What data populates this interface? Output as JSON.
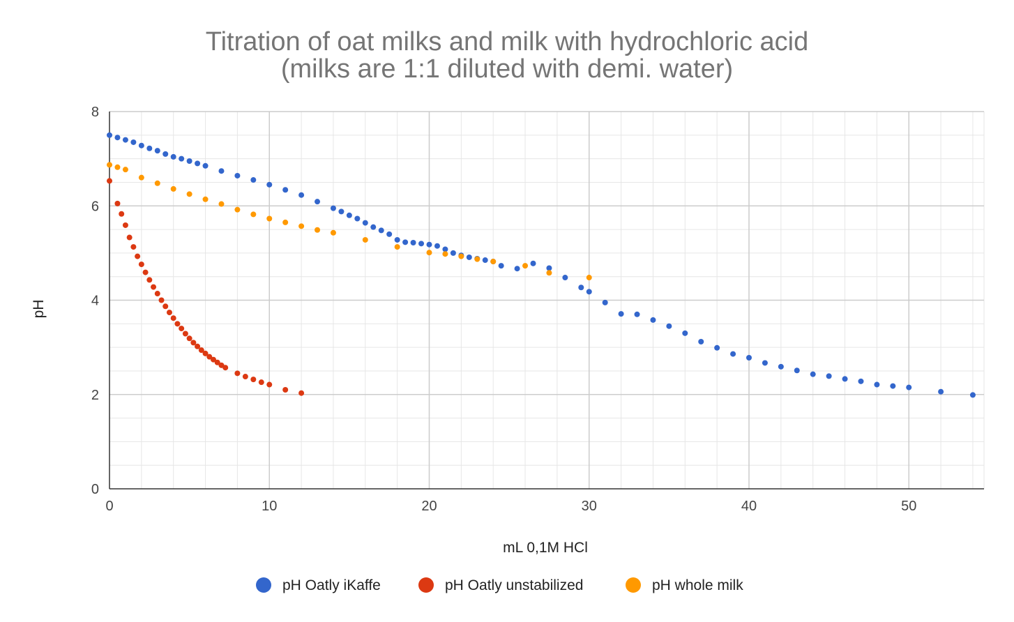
{
  "chart_data": {
    "type": "scatter",
    "title": "Titration of oat milks and milk with hydrochloric acid",
    "subtitle": "(milks are 1:1 diluted with demi. water)",
    "xlabel": "mL 0,1M HCl",
    "ylabel": "pH",
    "xlim": [
      0,
      54.7
    ],
    "ylim": [
      0,
      8
    ],
    "x_ticks": [
      "0",
      "10",
      "20",
      "30",
      "40",
      "50"
    ],
    "y_ticks": [
      "0",
      "2",
      "4",
      "6",
      "8"
    ],
    "grid": true,
    "legend_position": "bottom",
    "series": [
      {
        "name": "pH Oatly iKaffe",
        "color": "#3366cc",
        "points": [
          [
            0,
            7.5
          ],
          [
            0.5,
            7.45
          ],
          [
            1,
            7.4
          ],
          [
            1.5,
            7.35
          ],
          [
            2,
            7.28
          ],
          [
            2.5,
            7.22
          ],
          [
            3,
            7.17
          ],
          [
            3.5,
            7.1
          ],
          [
            4,
            7.04
          ],
          [
            4.5,
            7.0
          ],
          [
            5,
            6.95
          ],
          [
            5.5,
            6.9
          ],
          [
            6,
            6.85
          ],
          [
            7,
            6.74
          ],
          [
            8,
            6.64
          ],
          [
            9,
            6.55
          ],
          [
            10,
            6.45
          ],
          [
            11,
            6.34
          ],
          [
            12,
            6.23
          ],
          [
            13,
            6.09
          ],
          [
            14,
            5.95
          ],
          [
            14.5,
            5.88
          ],
          [
            15,
            5.8
          ],
          [
            15.5,
            5.73
          ],
          [
            16,
            5.64
          ],
          [
            16.5,
            5.55
          ],
          [
            17,
            5.48
          ],
          [
            17.5,
            5.4
          ],
          [
            18,
            5.28
          ],
          [
            18.5,
            5.23
          ],
          [
            19,
            5.22
          ],
          [
            19.5,
            5.2
          ],
          [
            20,
            5.18
          ],
          [
            20.5,
            5.15
          ],
          [
            21,
            5.08
          ],
          [
            21.5,
            5.0
          ],
          [
            22,
            4.95
          ],
          [
            22.5,
            4.91
          ],
          [
            23,
            4.88
          ],
          [
            23.5,
            4.85
          ],
          [
            24,
            4.82
          ],
          [
            24.5,
            4.73
          ],
          [
            25.5,
            4.67
          ],
          [
            26.5,
            4.78
          ],
          [
            27.5,
            4.68
          ],
          [
            28.5,
            4.48
          ],
          [
            29.5,
            4.27
          ],
          [
            30,
            4.18
          ],
          [
            31,
            3.95
          ],
          [
            32,
            3.71
          ],
          [
            33,
            3.7
          ],
          [
            34,
            3.58
          ],
          [
            35,
            3.45
          ],
          [
            36,
            3.3
          ],
          [
            37,
            3.12
          ],
          [
            38,
            2.99
          ],
          [
            39,
            2.86
          ],
          [
            40,
            2.78
          ],
          [
            41,
            2.67
          ],
          [
            42,
            2.59
          ],
          [
            43,
            2.51
          ],
          [
            44,
            2.43
          ],
          [
            45,
            2.39
          ],
          [
            46,
            2.33
          ],
          [
            47,
            2.28
          ],
          [
            48,
            2.21
          ],
          [
            49,
            2.18
          ],
          [
            50,
            2.15
          ],
          [
            52,
            2.06
          ],
          [
            54,
            1.99
          ]
        ]
      },
      {
        "name": "pH Oatly unstabilized",
        "color": "#dc3912",
        "points": [
          [
            0,
            6.53
          ],
          [
            0.5,
            6.05
          ],
          [
            0.75,
            5.83
          ],
          [
            1,
            5.59
          ],
          [
            1.25,
            5.33
          ],
          [
            1.5,
            5.13
          ],
          [
            1.75,
            4.93
          ],
          [
            2,
            4.76
          ],
          [
            2.25,
            4.59
          ],
          [
            2.5,
            4.43
          ],
          [
            2.75,
            4.28
          ],
          [
            3,
            4.14
          ],
          [
            3.25,
            4.0
          ],
          [
            3.5,
            3.87
          ],
          [
            3.75,
            3.74
          ],
          [
            4,
            3.62
          ],
          [
            4.25,
            3.5
          ],
          [
            4.5,
            3.4
          ],
          [
            4.75,
            3.29
          ],
          [
            5,
            3.19
          ],
          [
            5.25,
            3.1
          ],
          [
            5.5,
            3.02
          ],
          [
            5.75,
            2.94
          ],
          [
            6,
            2.87
          ],
          [
            6.25,
            2.8
          ],
          [
            6.5,
            2.74
          ],
          [
            6.75,
            2.68
          ],
          [
            7,
            2.62
          ],
          [
            7.25,
            2.57
          ],
          [
            8,
            2.45
          ],
          [
            8.5,
            2.38
          ],
          [
            9,
            2.32
          ],
          [
            9.5,
            2.26
          ],
          [
            10,
            2.21
          ],
          [
            11,
            2.1
          ],
          [
            12,
            2.03
          ]
        ]
      },
      {
        "name": "pH whole milk",
        "color": "#ff9900",
        "points": [
          [
            0,
            6.87
          ],
          [
            0.5,
            6.82
          ],
          [
            1,
            6.77
          ],
          [
            2,
            6.6
          ],
          [
            3,
            6.48
          ],
          [
            4,
            6.36
          ],
          [
            5,
            6.25
          ],
          [
            6,
            6.14
          ],
          [
            7,
            6.04
          ],
          [
            8,
            5.92
          ],
          [
            9,
            5.82
          ],
          [
            10,
            5.73
          ],
          [
            11,
            5.65
          ],
          [
            12,
            5.57
          ],
          [
            13,
            5.49
          ],
          [
            14,
            5.43
          ],
          [
            16,
            5.28
          ],
          [
            18,
            5.13
          ],
          [
            20,
            5.01
          ],
          [
            21,
            4.98
          ],
          [
            22,
            4.93
          ],
          [
            23,
            4.87
          ],
          [
            24,
            4.82
          ],
          [
            26,
            4.73
          ],
          [
            27.5,
            4.58
          ],
          [
            30,
            4.48
          ]
        ]
      }
    ]
  }
}
